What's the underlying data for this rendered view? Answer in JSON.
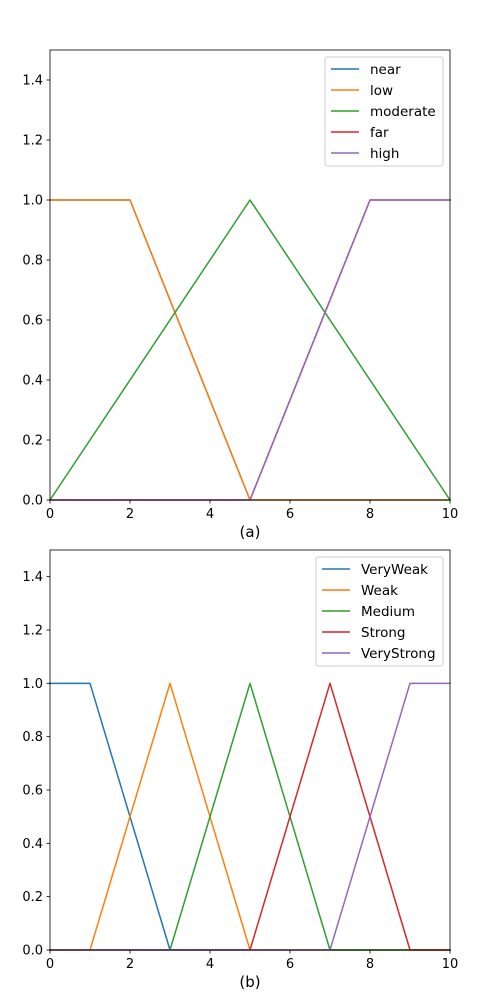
{
  "chart_data": [
    {
      "type": "line",
      "caption": "(a)",
      "xlim": [
        0,
        10
      ],
      "ylim": [
        0,
        1.5
      ],
      "xticks": [
        0,
        2,
        4,
        6,
        8,
        10
      ],
      "yticks": [
        0.0,
        0.2,
        0.4,
        0.6,
        0.8,
        1.0,
        1.2,
        1.4
      ],
      "grid": false,
      "legend_position": "top-right",
      "series": [
        {
          "name": "near",
          "color": "#1f77b4",
          "points": [
            [
              0,
              1
            ],
            [
              2,
              1
            ],
            [
              5,
              0
            ],
            [
              10,
              0
            ]
          ]
        },
        {
          "name": "low",
          "color": "#ff7f0e",
          "points": [
            [
              0,
              1
            ],
            [
              2,
              1
            ],
            [
              5,
              0
            ],
            [
              10,
              0
            ]
          ]
        },
        {
          "name": "moderate",
          "color": "#2ca02c",
          "points": [
            [
              0,
              0
            ],
            [
              5,
              1
            ],
            [
              10,
              0
            ]
          ]
        },
        {
          "name": "far",
          "color": "#d62728",
          "points": [
            [
              0,
              0
            ],
            [
              5,
              0
            ],
            [
              8,
              1
            ],
            [
              10,
              1
            ]
          ]
        },
        {
          "name": "high",
          "color": "#9467bd",
          "points": [
            [
              0,
              0
            ],
            [
              5,
              0
            ],
            [
              8,
              1
            ],
            [
              10,
              1
            ]
          ]
        }
      ]
    },
    {
      "type": "line",
      "caption": "(b)",
      "xlim": [
        0,
        10
      ],
      "ylim": [
        0,
        1.5
      ],
      "xticks": [
        0,
        2,
        4,
        6,
        8,
        10
      ],
      "yticks": [
        0.0,
        0.2,
        0.4,
        0.6,
        0.8,
        1.0,
        1.2,
        1.4
      ],
      "grid": false,
      "legend_position": "top-right",
      "series": [
        {
          "name": "VeryWeak",
          "color": "#1f77b4",
          "points": [
            [
              0,
              1
            ],
            [
              1,
              1
            ],
            [
              3,
              0
            ],
            [
              10,
              0
            ]
          ]
        },
        {
          "name": "Weak",
          "color": "#ff7f0e",
          "points": [
            [
              0,
              0
            ],
            [
              1,
              0
            ],
            [
              3,
              1
            ],
            [
              5,
              0
            ],
            [
              10,
              0
            ]
          ]
        },
        {
          "name": "Medium",
          "color": "#2ca02c",
          "points": [
            [
              0,
              0
            ],
            [
              3,
              0
            ],
            [
              5,
              1
            ],
            [
              7,
              0
            ],
            [
              10,
              0
            ]
          ]
        },
        {
          "name": "Strong",
          "color": "#d62728",
          "points": [
            [
              0,
              0
            ],
            [
              5,
              0
            ],
            [
              7,
              1
            ],
            [
              9,
              0
            ],
            [
              10,
              0
            ]
          ]
        },
        {
          "name": "VeryStrong",
          "color": "#9467bd",
          "points": [
            [
              0,
              0
            ],
            [
              7,
              0
            ],
            [
              9,
              1
            ],
            [
              10,
              1
            ]
          ]
        }
      ]
    }
  ]
}
